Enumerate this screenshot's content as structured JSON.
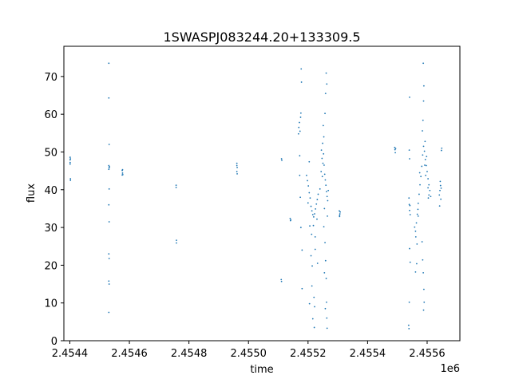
{
  "chart_data": {
    "type": "scatter",
    "title": "1SWASPJ083244.20+133309.5",
    "xlabel": "time",
    "ylabel": "flux",
    "offset_label": "1e6",
    "xlim": [
      2454380,
      2455710
    ],
    "ylim": [
      0,
      78
    ],
    "x_ticks": [
      2454400,
      2454600,
      2454800,
      2455000,
      2455200,
      2455400,
      2455600
    ],
    "x_tick_labels": [
      "2.4544",
      "2.4546",
      "2.4548",
      "2.4550",
      "2.4552",
      "2.4554",
      "2.4556"
    ],
    "y_ticks": [
      0,
      10,
      20,
      30,
      40,
      50,
      60,
      70
    ],
    "y_tick_labels": [
      "0",
      "10",
      "20",
      "30",
      "40",
      "50",
      "60",
      "70"
    ],
    "grid": false,
    "marker_color": "#1f77b4",
    "series": [
      {
        "points": [
          [
            2454401,
            48.6
          ],
          [
            2454401,
            47.9
          ],
          [
            2454401,
            47.2
          ],
          [
            2454401,
            46.8
          ],
          [
            2454402,
            48.2
          ],
          [
            2454402,
            42.9
          ],
          [
            2454402,
            42.5
          ],
          [
            2454531,
            73.5
          ],
          [
            2454531,
            64.3
          ],
          [
            2454532,
            52.0
          ],
          [
            2454531,
            46.4
          ],
          [
            2454532,
            45.8
          ],
          [
            2454531,
            45.4
          ],
          [
            2454533,
            46.1
          ],
          [
            2454532,
            40.2
          ],
          [
            2454531,
            36.0
          ],
          [
            2454532,
            31.5
          ],
          [
            2454531,
            23.0
          ],
          [
            2454532,
            21.8
          ],
          [
            2454531,
            15.8
          ],
          [
            2454532,
            15.0
          ],
          [
            2454531,
            7.5
          ],
          [
            2454576,
            45.1
          ],
          [
            2454577,
            44.4
          ],
          [
            2454576,
            43.9
          ],
          [
            2454577,
            45.3
          ],
          [
            2454578,
            44.0
          ],
          [
            2454757,
            41.2
          ],
          [
            2454757,
            40.6
          ],
          [
            2454758,
            26.6
          ],
          [
            2454758,
            25.9
          ],
          [
            2454961,
            47.0
          ],
          [
            2454961,
            46.4
          ],
          [
            2454962,
            45.9
          ],
          [
            2454961,
            44.8
          ],
          [
            2454962,
            44.2
          ],
          [
            2455111,
            48.2
          ],
          [
            2455112,
            47.8
          ],
          [
            2455110,
            16.2
          ],
          [
            2455111,
            15.7
          ],
          [
            2455140,
            32.4
          ],
          [
            2455141,
            31.8
          ],
          [
            2455142,
            32.0
          ],
          [
            2455168,
            54.8
          ],
          [
            2455169,
            56.5
          ],
          [
            2455171,
            57.8
          ],
          [
            2455173,
            55.5
          ],
          [
            2455175,
            59.2
          ],
          [
            2455176,
            60.3
          ],
          [
            2455172,
            49.0
          ],
          [
            2455172,
            43.8
          ],
          [
            2455174,
            38.0
          ],
          [
            2455176,
            30.0
          ],
          [
            2455178,
            68.5
          ],
          [
            2455177,
            72.0
          ],
          [
            2455180,
            24.0
          ],
          [
            2455180,
            13.8
          ],
          [
            2455195,
            43.8
          ],
          [
            2455198,
            42.4
          ],
          [
            2455201,
            41.0
          ],
          [
            2455204,
            39.2
          ],
          [
            2455207,
            37.8
          ],
          [
            2455210,
            35.6
          ],
          [
            2455213,
            34.4
          ],
          [
            2455216,
            33.4
          ],
          [
            2455219,
            32.8
          ],
          [
            2455222,
            33.6
          ],
          [
            2455225,
            34.9
          ],
          [
            2455228,
            36.2
          ],
          [
            2455231,
            37.4
          ],
          [
            2455234,
            38.8
          ],
          [
            2455200,
            36.5
          ],
          [
            2455206,
            30.4
          ],
          [
            2455212,
            28.2
          ],
          [
            2455218,
            30.5
          ],
          [
            2455224,
            27.5
          ],
          [
            2455230,
            32.2
          ],
          [
            2455204,
            47.4
          ],
          [
            2455210,
            22.5
          ],
          [
            2455214,
            19.8
          ],
          [
            2455220,
            11.5
          ],
          [
            2455222,
            9.0
          ],
          [
            2455216,
            5.8
          ],
          [
            2455221,
            3.5
          ],
          [
            2455213,
            14.5
          ],
          [
            2455224,
            24.2
          ],
          [
            2455232,
            20.5
          ],
          [
            2455205,
            9.8
          ],
          [
            2455240,
            40.2
          ],
          [
            2455244,
            44.8
          ],
          [
            2455247,
            48.3
          ],
          [
            2455249,
            52.3
          ],
          [
            2455251,
            57.0
          ],
          [
            2455253,
            54.0
          ],
          [
            2455252,
            49.5
          ],
          [
            2455254,
            46.5
          ],
          [
            2455256,
            44.1
          ],
          [
            2455258,
            42.6
          ],
          [
            2455260,
            41.2
          ],
          [
            2455262,
            39.5
          ],
          [
            2455264,
            38.2
          ],
          [
            2455266,
            37.1
          ],
          [
            2455257,
            60.2
          ],
          [
            2455259,
            65.5
          ],
          [
            2455261,
            70.9
          ],
          [
            2455263,
            68.0
          ],
          [
            2455255,
            35.0
          ],
          [
            2455253,
            30.2
          ],
          [
            2455257,
            26.0
          ],
          [
            2455259,
            21.2
          ],
          [
            2455261,
            16.5
          ],
          [
            2455262,
            10.2
          ],
          [
            2455263,
            6.0
          ],
          [
            2455264,
            3.3
          ],
          [
            2455250,
            47.0
          ],
          [
            2455245,
            50.5
          ],
          [
            2455248,
            43.5
          ],
          [
            2455268,
            39.8
          ],
          [
            2455265,
            33.0
          ],
          [
            2455258,
            8.5
          ],
          [
            2455255,
            18.0
          ],
          [
            2455305,
            34.4
          ],
          [
            2455307,
            33.6
          ],
          [
            2455306,
            32.9
          ],
          [
            2455308,
            34.1
          ],
          [
            2455306,
            33.2
          ],
          [
            2455491,
            51.2
          ],
          [
            2455492,
            50.6
          ],
          [
            2455493,
            49.8
          ],
          [
            2455494,
            50.9
          ],
          [
            2455539,
            37.8
          ],
          [
            2455540,
            36.1
          ],
          [
            2455541,
            34.5
          ],
          [
            2455542,
            35.8
          ],
          [
            2455543,
            33.4
          ],
          [
            2455540,
            50.5
          ],
          [
            2455541,
            64.5
          ],
          [
            2455541,
            24.4
          ],
          [
            2455543,
            20.8
          ],
          [
            2455540,
            10.2
          ],
          [
            2455538,
            4.1
          ],
          [
            2455539,
            3.2
          ],
          [
            2455541,
            48.2
          ],
          [
            2455558,
            30.1
          ],
          [
            2455561,
            29.0
          ],
          [
            2455564,
            31.2
          ],
          [
            2455567,
            33.5
          ],
          [
            2455570,
            36.4
          ],
          [
            2455573,
            38.8
          ],
          [
            2455576,
            41.3
          ],
          [
            2455579,
            43.5
          ],
          [
            2455582,
            46.2
          ],
          [
            2455585,
            49.2
          ],
          [
            2455588,
            51.5
          ],
          [
            2455591,
            50.2
          ],
          [
            2455594,
            48.0
          ],
          [
            2455597,
            46.4
          ],
          [
            2455600,
            44.8
          ],
          [
            2455603,
            42.9
          ],
          [
            2455606,
            41.3
          ],
          [
            2455609,
            39.8
          ],
          [
            2455612,
            38.2
          ],
          [
            2455562,
            27.5
          ],
          [
            2455566,
            25.6
          ],
          [
            2455570,
            33.0
          ],
          [
            2455584,
            55.6
          ],
          [
            2455586,
            58.4
          ],
          [
            2455588,
            63.5
          ],
          [
            2455589,
            67.5
          ],
          [
            2455587,
            73.5
          ],
          [
            2455583,
            26.2
          ],
          [
            2455585,
            21.4
          ],
          [
            2455587,
            18.0
          ],
          [
            2455589,
            13.6
          ],
          [
            2455590,
            10.2
          ],
          [
            2455588,
            8.1
          ],
          [
            2455592,
            46.5
          ],
          [
            2455595,
            43.8
          ],
          [
            2455603,
            40.5
          ],
          [
            2455606,
            38.6
          ],
          [
            2455561,
            18.2
          ],
          [
            2455565,
            20.4
          ],
          [
            2455569,
            34.8
          ],
          [
            2455575,
            44.5
          ],
          [
            2455593,
            52.8
          ],
          [
            2455598,
            48.8
          ],
          [
            2455604,
            37.8
          ],
          [
            2455641,
            38.6
          ],
          [
            2455643,
            39.8
          ],
          [
            2455645,
            41.1
          ],
          [
            2455647,
            40.4
          ],
          [
            2455644,
            42.2
          ],
          [
            2455646,
            37.5
          ],
          [
            2455648,
            50.4
          ],
          [
            2455649,
            51.0
          ],
          [
            2455642,
            35.7
          ]
        ]
      }
    ]
  }
}
